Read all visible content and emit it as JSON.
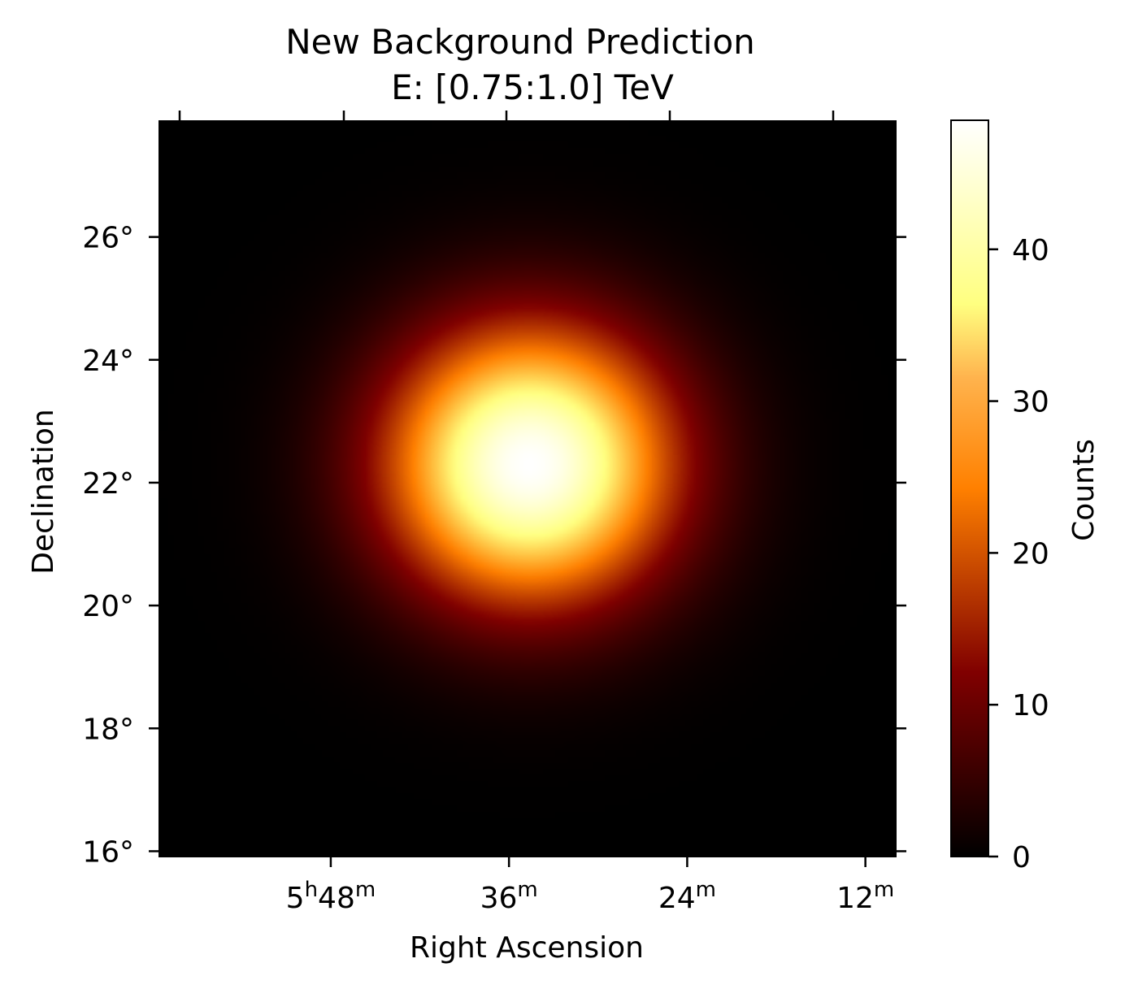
{
  "chart_data": {
    "type": "heatmap",
    "title": "New Background Prediction",
    "subtitle": "E: [0.75:1.0] TeV",
    "xlabel": "Right Ascension",
    "ylabel": "Declination",
    "x_ticks": [
      {
        "value_min": 48,
        "label": "5",
        "sup1": "h",
        "mid": "48",
        "sup2": "m"
      },
      {
        "value_min": 36,
        "label": "36",
        "sup1": "m",
        "mid": "",
        "sup2": ""
      },
      {
        "value_min": 24,
        "label": "24",
        "sup1": "m",
        "mid": "",
        "sup2": ""
      },
      {
        "value_min": 12,
        "label": "12",
        "sup1": "m",
        "mid": "",
        "sup2": ""
      }
    ],
    "y_ticks": [
      {
        "value": 16,
        "label": "16°"
      },
      {
        "value": 18,
        "label": "18°"
      },
      {
        "value": 20,
        "label": "20°"
      },
      {
        "value": 22,
        "label": "22°"
      },
      {
        "value": 24,
        "label": "24°"
      },
      {
        "value": 26,
        "label": "26°"
      }
    ],
    "xlim_ra_min": [
      59.6,
      9.9
    ],
    "ylim_dec": [
      15.9,
      27.9
    ],
    "peak": {
      "ra_min": 34.6,
      "dec": 22.3,
      "value": 48.5
    },
    "sigma_deg": 1.55,
    "colormap": "afmhot",
    "colorbar": {
      "label": "Counts",
      "range": [
        0,
        48.5
      ],
      "ticks": [
        0,
        10,
        20,
        30,
        40
      ]
    },
    "grid": false
  }
}
